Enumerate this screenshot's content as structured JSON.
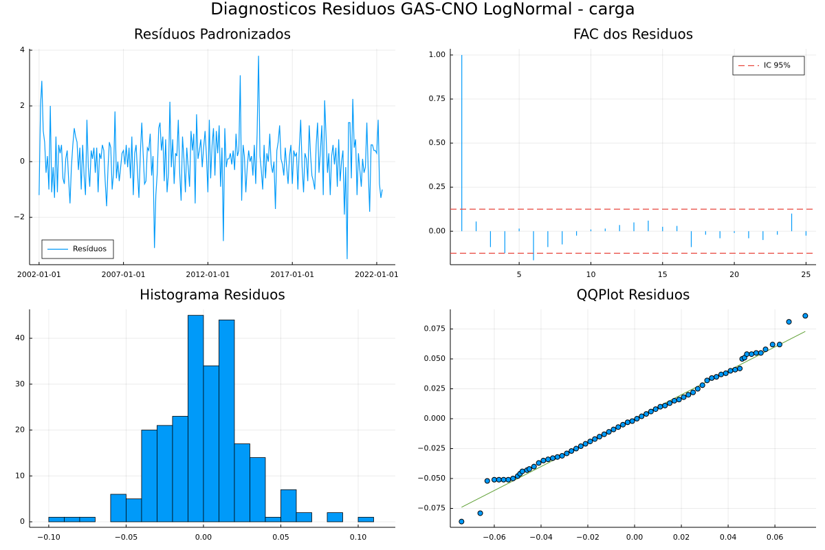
{
  "title": "Diagnosticos Residuos GAS-CNO LogNormal - carga",
  "chart_data": [
    {
      "type": "line",
      "title": "Resíduos Padronizados",
      "grid": true,
      "legend": "bottom left",
      "x": [
        "2002-01-01",
        "2002-02-01",
        "2002-03-01",
        "2002-04-01",
        "2002-05-01",
        "2002-06-01",
        "2002-07-01",
        "2002-08-01",
        "2002-09-01",
        "2002-10-01",
        "2002-11-01",
        "2002-12-01",
        "2003-01-01",
        "2003-02-01",
        "2003-03-01",
        "2003-04-01",
        "2003-05-01",
        "2003-06-01",
        "2003-07-01",
        "2003-08-01",
        "2003-09-01",
        "2003-10-01",
        "2003-11-01",
        "2003-12-01",
        "2004-01-01",
        "2004-02-01",
        "2004-03-01",
        "2004-04-01",
        "2004-05-01",
        "2004-06-01",
        "2004-07-01",
        "2004-08-01",
        "2004-09-01",
        "2004-10-01",
        "2004-11-01",
        "2004-12-01",
        "2005-01-01",
        "2005-02-01",
        "2005-03-01",
        "2005-04-01",
        "2005-05-01",
        "2005-06-01",
        "2005-07-01",
        "2005-08-01",
        "2005-09-01",
        "2005-10-01",
        "2005-11-01",
        "2005-12-01",
        "2006-01-01",
        "2006-02-01",
        "2006-03-01",
        "2006-04-01",
        "2006-05-01",
        "2006-06-01",
        "2006-07-01",
        "2006-08-01",
        "2006-09-01",
        "2006-10-01",
        "2006-11-01",
        "2006-12-01",
        "2007-01-01",
        "2007-02-01",
        "2007-03-01",
        "2007-04-01",
        "2007-05-01",
        "2007-06-01",
        "2007-07-01",
        "2007-08-01",
        "2007-09-01",
        "2007-10-01",
        "2007-11-01",
        "2007-12-01",
        "2008-01-01",
        "2008-02-01",
        "2008-03-01",
        "2008-04-01",
        "2008-05-01",
        "2008-06-01",
        "2008-07-01",
        "2008-08-01",
        "2008-09-01",
        "2008-10-01",
        "2008-11-01",
        "2008-12-01",
        "2009-01-01",
        "2009-02-01",
        "2009-03-01",
        "2009-04-01",
        "2009-05-01",
        "2009-06-01",
        "2009-07-01",
        "2009-08-01",
        "2009-09-01",
        "2009-10-01",
        "2009-11-01",
        "2009-12-01",
        "2010-01-01",
        "2010-02-01",
        "2010-03-01",
        "2010-04-01",
        "2010-05-01",
        "2010-06-01",
        "2010-07-01",
        "2010-08-01",
        "2010-09-01",
        "2010-10-01",
        "2010-11-01",
        "2010-12-01",
        "2011-01-01",
        "2011-02-01",
        "2011-03-01",
        "2011-04-01",
        "2011-05-01",
        "2011-06-01",
        "2011-07-01",
        "2011-08-01",
        "2011-09-01",
        "2011-10-01",
        "2011-11-01",
        "2011-12-01",
        "2012-01-01",
        "2012-02-01",
        "2012-03-01",
        "2012-04-01",
        "2012-05-01",
        "2012-06-01",
        "2012-07-01",
        "2012-08-01",
        "2012-09-01",
        "2012-10-01",
        "2012-11-01",
        "2012-12-01",
        "2013-01-01",
        "2013-02-01",
        "2013-03-01",
        "2013-04-01",
        "2013-05-01",
        "2013-06-01",
        "2013-07-01",
        "2013-08-01",
        "2013-09-01",
        "2013-10-01",
        "2013-11-01",
        "2013-12-01",
        "2014-01-01",
        "2014-02-01",
        "2014-03-01",
        "2014-04-01",
        "2014-05-01",
        "2014-06-01",
        "2014-07-01",
        "2014-08-01",
        "2014-09-01",
        "2014-10-01",
        "2014-11-01",
        "2014-12-01",
        "2015-01-01",
        "2015-02-01",
        "2015-03-01",
        "2015-04-01",
        "2015-05-01",
        "2015-06-01",
        "2015-07-01",
        "2015-08-01",
        "2015-09-01",
        "2015-10-01",
        "2015-11-01",
        "2015-12-01",
        "2016-01-01",
        "2016-02-01",
        "2016-03-01",
        "2016-04-01",
        "2016-05-01",
        "2016-06-01",
        "2016-07-01",
        "2016-08-01",
        "2016-09-01",
        "2016-10-01",
        "2016-11-01",
        "2016-12-01",
        "2017-01-01",
        "2017-02-01",
        "2017-03-01",
        "2017-04-01",
        "2017-05-01",
        "2017-06-01",
        "2017-07-01",
        "2017-08-01",
        "2017-09-01",
        "2017-10-01",
        "2017-11-01",
        "2017-12-01",
        "2018-01-01",
        "2018-02-01",
        "2018-03-01",
        "2018-04-01",
        "2018-05-01",
        "2018-06-01",
        "2018-07-01",
        "2018-08-01",
        "2018-09-01",
        "2018-10-01",
        "2018-11-01",
        "2018-12-01",
        "2019-01-01",
        "2019-02-01",
        "2019-03-01",
        "2019-04-01",
        "2019-05-01",
        "2019-06-01",
        "2019-07-01",
        "2019-08-01",
        "2019-09-01",
        "2019-10-01",
        "2019-11-01",
        "2019-12-01",
        "2020-01-01",
        "2020-02-01",
        "2020-03-01",
        "2020-04-01",
        "2020-05-01",
        "2020-06-01",
        "2020-07-01",
        "2020-08-01",
        "2020-09-01",
        "2020-10-01",
        "2020-11-01",
        "2020-12-01",
        "2021-01-01",
        "2021-02-01",
        "2021-03-01",
        "2021-04-01",
        "2021-05-01",
        "2021-06-01",
        "2021-07-01",
        "2021-08-01",
        "2021-09-01",
        "2021-10-01",
        "2021-11-01",
        "2021-12-01",
        "2022-01-01",
        "2022-02-01",
        "2022-03-01",
        "2022-04-01",
        "2022-05-01"
      ],
      "series": [
        {
          "name": "Resíduos",
          "color": "#009af9",
          "values": [
            -1.2,
            2.0,
            2.9,
            1.1,
            0.7,
            -0.4,
            0.2,
            -1.0,
            2.0,
            -1.1,
            -0.2,
            -1.3,
            0.9,
            -1.1,
            0.6,
            0.3,
            0.6,
            -0.6,
            -0.8,
            0.1,
            0.4,
            -0.6,
            -1.5,
            -0.2,
            0.6,
            1.2,
            0.9,
            0.7,
            -0.3,
            0.5,
            -1.0,
            0.6,
            -0.5,
            -1.2,
            1.5,
            -0.2,
            -0.9,
            0.4,
            0.1,
            0.5,
            -0.4,
            0.5,
            -1.1,
            0.3,
            0.1,
            0.6,
            0.4,
            -0.7,
            -1.6,
            -0.2,
            0.7,
            0.5,
            -1.0,
            -0.4,
            1.8,
            -0.6,
            0.0,
            -0.7,
            -0.2,
            0.3,
            0.4,
            -0.1,
            0.6,
            -0.2,
            0.5,
            -0.6,
            0.9,
            -1.2,
            0.3,
            0.6,
            -0.4,
            -1.3,
            0.3,
            1.4,
            0.3,
            -0.8,
            -0.7,
            0.5,
            0.4,
            1.0,
            -0.5,
            0.2,
            -3.1,
            -1.2,
            -0.4,
            1.2,
            1.4,
            0.4,
            0.9,
            -0.7,
            0.8,
            -1.1,
            -0.4,
            2.15,
            -0.2,
            0.8,
            -0.8,
            0.3,
            0.2,
            1.5,
            -0.4,
            -1.4,
            0.9,
            0.1,
            -1.1,
            0.5,
            -0.2,
            -0.9,
            1.1,
            0.4,
            1.0,
            -1.5,
            1.7,
            0.1,
            0.4,
            0.8,
            -0.2,
            0.5,
            1.1,
            0.2,
            -1.1,
            1.5,
            -0.6,
            0.6,
            1.2,
            -0.5,
            1.1,
            0.3,
            1.3,
            -0.9,
            0.5,
            -2.85,
            1.2,
            -0.2,
            0.1,
            0.1,
            0.3,
            -0.1,
            0.4,
            -0.3,
            1.0,
            0.2,
            0.4,
            3.1,
            -1.4,
            0.6,
            0.2,
            -1.1,
            -0.2,
            0.4,
            0.0,
            0.2,
            -0.5,
            0.6,
            -0.8,
            1.0,
            3.8,
            0.2,
            -0.3,
            -1.0,
            0.6,
            -0.6,
            0.3,
            0.0,
            1.0,
            -0.1,
            -0.4,
            0.0,
            -1.7,
            0.4,
            0.7,
            1.3,
            0.1,
            -0.1,
            -0.5,
            0.5,
            -0.2,
            -0.8,
            0.2,
            0.6,
            -0.8,
            0.4,
            0.2,
            0.3,
            -1.0,
            0.5,
            1.5,
            -0.2,
            -1.1,
            0.3,
            0.1,
            -0.7,
            1.3,
            0.2,
            -0.5,
            -0.7,
            -1.0,
            0.6,
            1.4,
            -0.4,
            0.4,
            1.3,
            -1.2,
            2.2,
            0.9,
            -0.4,
            0.3,
            -1.2,
            0.2,
            0.6,
            -0.1,
            0.5,
            -0.9,
            0.8,
            -0.7,
            0.0,
            0.4,
            -1.9,
            -0.2,
            -3.5,
            1.4,
            1.4,
            -0.6,
            2.25,
            0.5,
            0.8,
            -1.2,
            0.3,
            -0.3,
            -0.9,
            0.1,
            -0.4,
            -0.2,
            1.4,
            -0.3,
            -1.8,
            0.6,
            0.6,
            0.4,
            0.4,
            0.3,
            1.5,
            -0.8,
            -1.3,
            -1.0
          ]
        }
      ],
      "xlim": [
        "2001-06-09",
        "2023-02-07"
      ],
      "xticks": [
        "2002-01-01",
        "2007-01-01",
        "2012-01-01",
        "2017-01-01",
        "2022-01-01"
      ],
      "ylim": [
        -3.7,
        4.05
      ],
      "yticks": [
        {
          "value": -2,
          "label": "−2"
        },
        0,
        2,
        4
      ]
    },
    {
      "type": "stem",
      "title": "FAC dos Residuos",
      "grid": true,
      "legend": "top right",
      "x": [
        1,
        2,
        3,
        4,
        5,
        6,
        7,
        8,
        9,
        10,
        11,
        12,
        13,
        14,
        15,
        16,
        17,
        18,
        19,
        20,
        21,
        22,
        23,
        24,
        25
      ],
      "series": [
        {
          "color": "#009af9",
          "values": [
            1.0,
            0.055,
            -0.09,
            -0.125,
            0.015,
            -0.165,
            -0.09,
            -0.075,
            -0.025,
            0.01,
            0.015,
            0.035,
            0.05,
            0.06,
            0.025,
            0.03,
            -0.09,
            -0.02,
            -0.04,
            -0.01,
            -0.04,
            -0.05,
            -0.02,
            0.1,
            -0.025
          ]
        }
      ],
      "hlines": {
        "name": "IC 95%",
        "color": "#e8453c",
        "values": [
          0.125,
          -0.125
        ]
      },
      "xlim": [
        0.2,
        25.7
      ],
      "xticks": [
        5,
        10,
        15,
        20,
        25
      ],
      "ylim": [
        -0.19,
        1.035
      ],
      "yticks": [
        {
          "value": 0,
          "label": "0.00"
        },
        {
          "value": 0.25,
          "label": "0.25"
        },
        {
          "value": 0.5,
          "label": "0.50"
        },
        {
          "value": 0.75,
          "label": "0.75"
        },
        {
          "value": 1,
          "label": "1.00"
        }
      ]
    },
    {
      "type": "histogram",
      "title": "Histograma Residuos",
      "grid": true,
      "color": "#009af9",
      "bins": [
        -0.1,
        -0.09,
        -0.08,
        -0.07,
        -0.06,
        -0.05,
        -0.04,
        -0.03,
        -0.02,
        -0.01,
        0,
        0.01,
        0.02,
        0.03,
        0.04,
        0.05,
        0.06,
        0.07,
        0.08,
        0.09,
        0.1,
        0.11
      ],
      "values": [
        1,
        1,
        1,
        0,
        6,
        5,
        20,
        21,
        23,
        45,
        34,
        44,
        17,
        14,
        1,
        7,
        2,
        0,
        2,
        0,
        1
      ],
      "xlim": [
        -0.1124,
        0.124
      ],
      "xticks": [
        {
          "value": -0.1,
          "label": "−0.10"
        },
        {
          "value": -0.05,
          "label": "−0.05"
        },
        {
          "value": 0,
          "label": "0.00"
        },
        {
          "value": 0.05,
          "label": "0.05"
        },
        {
          "value": 0.1,
          "label": "0.10"
        }
      ],
      "ylim": [
        -1.2,
        46.3
      ],
      "yticks": [
        0,
        10,
        20,
        30,
        40
      ]
    },
    {
      "type": "scatter",
      "title": "QQPlot Residuos",
      "grid": true,
      "color": "#009af9",
      "x": [
        -0.074,
        -0.066,
        -0.063,
        -0.06,
        -0.058,
        -0.056,
        -0.054,
        -0.052,
        -0.05,
        -0.049,
        -0.048,
        -0.046,
        -0.045,
        -0.043,
        -0.041,
        -0.039,
        -0.037,
        -0.035,
        -0.033,
        -0.031,
        -0.029,
        -0.027,
        -0.025,
        -0.023,
        -0.021,
        -0.019,
        -0.017,
        -0.015,
        -0.013,
        -0.011,
        -0.009,
        -0.007,
        -0.005,
        -0.003,
        -0.001,
        0.001,
        0.003,
        0.005,
        0.007,
        0.009,
        0.011,
        0.013,
        0.015,
        0.017,
        0.019,
        0.021,
        0.023,
        0.025,
        0.027,
        0.029,
        0.031,
        0.033,
        0.035,
        0.037,
        0.039,
        0.041,
        0.043,
        0.045,
        0.046,
        0.047,
        0.048,
        0.05,
        0.052,
        0.054,
        0.056,
        0.059,
        0.062,
        0.066,
        0.073
      ],
      "y": [
        -0.086,
        -0.079,
        -0.052,
        -0.051,
        -0.051,
        -0.051,
        -0.051,
        -0.05,
        -0.048,
        -0.046,
        -0.044,
        -0.043,
        -0.042,
        -0.04,
        -0.037,
        -0.035,
        -0.034,
        -0.033,
        -0.032,
        -0.031,
        -0.029,
        -0.027,
        -0.025,
        -0.023,
        -0.021,
        -0.019,
        -0.017,
        -0.015,
        -0.013,
        -0.011,
        -0.009,
        -0.007,
        -0.005,
        -0.003,
        -0.002,
        0.0,
        0.002,
        0.004,
        0.006,
        0.008,
        0.01,
        0.011,
        0.013,
        0.015,
        0.016,
        0.018,
        0.02,
        0.022,
        0.025,
        0.028,
        0.032,
        0.034,
        0.035,
        0.037,
        0.038,
        0.04,
        0.041,
        0.042,
        0.05,
        0.051,
        0.054,
        0.054,
        0.055,
        0.055,
        0.058,
        0.062,
        0.062,
        0.081,
        0.086
      ],
      "ref": {
        "color": "#5c9e31",
        "x": [
          -0.074,
          0.073
        ],
        "y": [
          -0.074,
          0.073
        ]
      },
      "xlim": [
        -0.0788,
        0.0776
      ],
      "xticks": [
        {
          "value": -0.06,
          "label": "−0.06"
        },
        {
          "value": -0.04,
          "label": "−0.04"
        },
        {
          "value": -0.02,
          "label": "−0.02"
        },
        {
          "value": 0,
          "label": "0.00"
        },
        {
          "value": 0.02,
          "label": "0.02"
        },
        {
          "value": 0.04,
          "label": "0.04"
        },
        {
          "value": 0.06,
          "label": "0.06"
        }
      ],
      "ylim": [
        -0.0908,
        0.0914
      ],
      "yticks": [
        {
          "value": -0.075,
          "label": "−0.075"
        },
        {
          "value": -0.05,
          "label": "−0.050"
        },
        {
          "value": -0.025,
          "label": "−0.025"
        },
        {
          "value": 0,
          "label": "0.000"
        },
        {
          "value": 0.025,
          "label": "0.025"
        },
        {
          "value": 0.05,
          "label": "0.050"
        },
        {
          "value": 0.075,
          "label": "0.075"
        }
      ]
    }
  ]
}
